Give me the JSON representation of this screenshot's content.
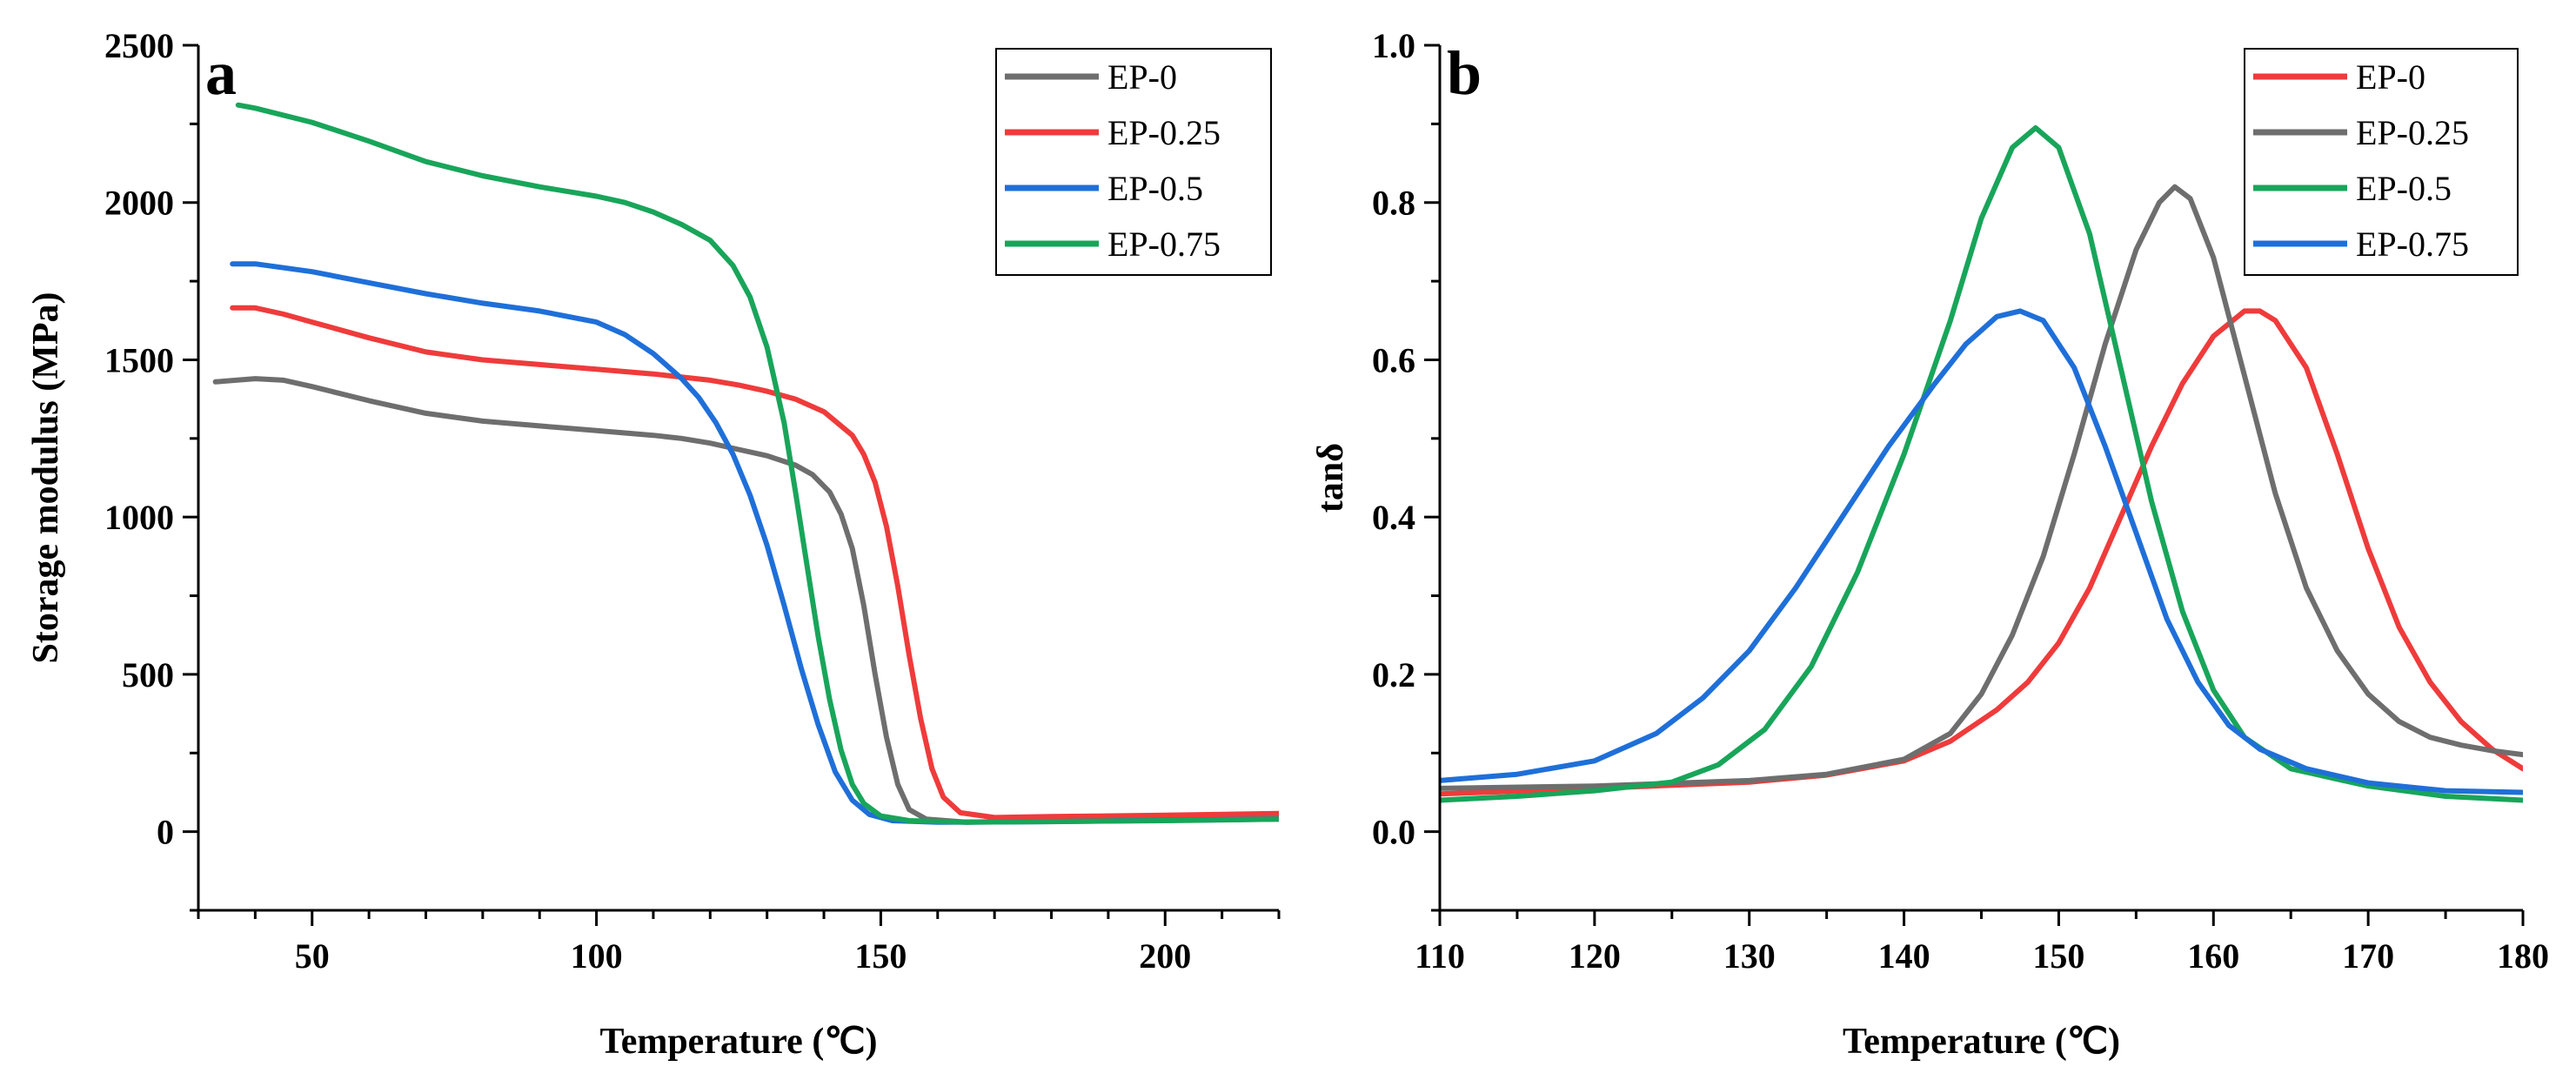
{
  "chart_data": [
    {
      "type": "line",
      "panel_label": "a",
      "xlabel": "Temperature (℃)",
      "ylabel": "Storage modulus (MPa)",
      "xlim": [
        30,
        220
      ],
      "ylim": [
        -250,
        2500
      ],
      "xticks": [
        50,
        100,
        150,
        200
      ],
      "yticks": [
        0,
        500,
        1000,
        1500,
        2000,
        2500
      ],
      "legend_position": "top-right",
      "series": [
        {
          "name": "EP-0",
          "color": "#6e6e6e",
          "points": [
            [
              33,
              1430
            ],
            [
              40,
              1440
            ],
            [
              45,
              1435
            ],
            [
              50,
              1415
            ],
            [
              60,
              1370
            ],
            [
              70,
              1330
            ],
            [
              80,
              1305
            ],
            [
              90,
              1290
            ],
            [
              100,
              1275
            ],
            [
              110,
              1260
            ],
            [
              115,
              1250
            ],
            [
              120,
              1235
            ],
            [
              125,
              1215
            ],
            [
              130,
              1195
            ],
            [
              135,
              1165
            ],
            [
              138,
              1135
            ],
            [
              141,
              1080
            ],
            [
              143,
              1010
            ],
            [
              145,
              900
            ],
            [
              147,
              720
            ],
            [
              149,
              500
            ],
            [
              151,
              300
            ],
            [
              153,
              150
            ],
            [
              155,
              70
            ],
            [
              158,
              40
            ],
            [
              165,
              30
            ],
            [
              180,
              35
            ],
            [
              200,
              38
            ],
            [
              220,
              42
            ]
          ]
        },
        {
          "name": "EP-0.25",
          "color": "#ef3b3b",
          "points": [
            [
              36,
              1665
            ],
            [
              40,
              1665
            ],
            [
              45,
              1645
            ],
            [
              50,
              1620
            ],
            [
              60,
              1570
            ],
            [
              70,
              1525
            ],
            [
              80,
              1500
            ],
            [
              90,
              1485
            ],
            [
              100,
              1470
            ],
            [
              110,
              1455
            ],
            [
              120,
              1435
            ],
            [
              125,
              1420
            ],
            [
              130,
              1400
            ],
            [
              135,
              1375
            ],
            [
              140,
              1335
            ],
            [
              145,
              1260
            ],
            [
              147,
              1200
            ],
            [
              149,
              1110
            ],
            [
              151,
              970
            ],
            [
              153,
              780
            ],
            [
              155,
              560
            ],
            [
              157,
              360
            ],
            [
              159,
              200
            ],
            [
              161,
              110
            ],
            [
              164,
              60
            ],
            [
              170,
              45
            ],
            [
              180,
              48
            ],
            [
              200,
              52
            ],
            [
              220,
              58
            ]
          ]
        },
        {
          "name": "EP-0.5",
          "color": "#1f6fd9",
          "points": [
            [
              36,
              1805
            ],
            [
              40,
              1805
            ],
            [
              50,
              1780
            ],
            [
              60,
              1745
            ],
            [
              70,
              1710
            ],
            [
              80,
              1680
            ],
            [
              90,
              1655
            ],
            [
              100,
              1620
            ],
            [
              105,
              1580
            ],
            [
              110,
              1520
            ],
            [
              115,
              1440
            ],
            [
              118,
              1380
            ],
            [
              121,
              1300
            ],
            [
              124,
              1200
            ],
            [
              127,
              1070
            ],
            [
              130,
              910
            ],
            [
              133,
              720
            ],
            [
              136,
              520
            ],
            [
              139,
              340
            ],
            [
              142,
              190
            ],
            [
              145,
              100
            ],
            [
              148,
              55
            ],
            [
              152,
              35
            ],
            [
              160,
              30
            ],
            [
              180,
              32
            ],
            [
              200,
              36
            ],
            [
              220,
              40
            ]
          ]
        },
        {
          "name": "EP-0.75",
          "color": "#18a55a",
          "points": [
            [
              37,
              2310
            ],
            [
              40,
              2300
            ],
            [
              50,
              2255
            ],
            [
              60,
              2195
            ],
            [
              70,
              2130
            ],
            [
              80,
              2085
            ],
            [
              90,
              2050
            ],
            [
              100,
              2020
            ],
            [
              105,
              2000
            ],
            [
              110,
              1970
            ],
            [
              115,
              1930
            ],
            [
              120,
              1880
            ],
            [
              124,
              1800
            ],
            [
              127,
              1700
            ],
            [
              130,
              1540
            ],
            [
              133,
              1300
            ],
            [
              135,
              1080
            ],
            [
              137,
              850
            ],
            [
              139,
              620
            ],
            [
              141,
              420
            ],
            [
              143,
              260
            ],
            [
              145,
              150
            ],
            [
              147,
              90
            ],
            [
              150,
              50
            ],
            [
              155,
              35
            ],
            [
              165,
              30
            ],
            [
              200,
              35
            ],
            [
              220,
              40
            ]
          ]
        }
      ]
    },
    {
      "type": "line",
      "panel_label": "b",
      "xlabel": "Temperature (℃)",
      "ylabel": "tanδ",
      "xlim": [
        110,
        180
      ],
      "ylim": [
        -0.1,
        1.0
      ],
      "xticks": [
        110,
        120,
        130,
        140,
        150,
        160,
        170,
        180
      ],
      "yticks": [
        0.0,
        0.2,
        0.4,
        0.6,
        0.8,
        1.0
      ],
      "legend_position": "top-right",
      "series": [
        {
          "name": "EP-0",
          "color": "#ef3b3b",
          "points": [
            [
              110,
              0.048
            ],
            [
              120,
              0.055
            ],
            [
              130,
              0.063
            ],
            [
              135,
              0.072
            ],
            [
              140,
              0.09
            ],
            [
              143,
              0.115
            ],
            [
              146,
              0.155
            ],
            [
              148,
              0.19
            ],
            [
              150,
              0.24
            ],
            [
              152,
              0.31
            ],
            [
              154,
              0.4
            ],
            [
              156,
              0.49
            ],
            [
              158,
              0.57
            ],
            [
              160,
              0.63
            ],
            [
              162,
              0.662
            ],
            [
              163,
              0.662
            ],
            [
              164,
              0.65
            ],
            [
              166,
              0.59
            ],
            [
              168,
              0.48
            ],
            [
              170,
              0.36
            ],
            [
              172,
              0.26
            ],
            [
              174,
              0.19
            ],
            [
              176,
              0.14
            ],
            [
              178,
              0.105
            ],
            [
              180,
              0.08
            ]
          ]
        },
        {
          "name": "EP-0.25",
          "color": "#6e6e6e",
          "points": [
            [
              110,
              0.055
            ],
            [
              120,
              0.058
            ],
            [
              130,
              0.065
            ],
            [
              135,
              0.073
            ],
            [
              140,
              0.092
            ],
            [
              143,
              0.125
            ],
            [
              145,
              0.175
            ],
            [
              147,
              0.25
            ],
            [
              149,
              0.35
            ],
            [
              151,
              0.48
            ],
            [
              153,
              0.62
            ],
            [
              155,
              0.74
            ],
            [
              156.5,
              0.8
            ],
            [
              157.5,
              0.82
            ],
            [
              158.5,
              0.805
            ],
            [
              160,
              0.73
            ],
            [
              162,
              0.58
            ],
            [
              164,
              0.43
            ],
            [
              166,
              0.31
            ],
            [
              168,
              0.23
            ],
            [
              170,
              0.175
            ],
            [
              172,
              0.14
            ],
            [
              174,
              0.12
            ],
            [
              176,
              0.11
            ],
            [
              178,
              0.103
            ],
            [
              180,
              0.098
            ]
          ]
        },
        {
          "name": "EP-0.5",
          "color": "#18a55a",
          "points": [
            [
              110,
              0.04
            ],
            [
              115,
              0.045
            ],
            [
              120,
              0.052
            ],
            [
              125,
              0.063
            ],
            [
              128,
              0.085
            ],
            [
              131,
              0.13
            ],
            [
              134,
              0.21
            ],
            [
              137,
              0.33
            ],
            [
              140,
              0.48
            ],
            [
              143,
              0.65
            ],
            [
              145,
              0.78
            ],
            [
              147,
              0.87
            ],
            [
              148.5,
              0.895
            ],
            [
              150,
              0.87
            ],
            [
              152,
              0.76
            ],
            [
              154,
              0.59
            ],
            [
              156,
              0.42
            ],
            [
              158,
              0.28
            ],
            [
              160,
              0.18
            ],
            [
              162,
              0.12
            ],
            [
              165,
              0.08
            ],
            [
              170,
              0.058
            ],
            [
              175,
              0.045
            ],
            [
              180,
              0.04
            ]
          ]
        },
        {
          "name": "EP-0.75",
          "color": "#1f6fd9",
          "points": [
            [
              110,
              0.065
            ],
            [
              115,
              0.073
            ],
            [
              120,
              0.09
            ],
            [
              124,
              0.125
            ],
            [
              127,
              0.17
            ],
            [
              130,
              0.23
            ],
            [
              133,
              0.31
            ],
            [
              136,
              0.4
            ],
            [
              139,
              0.49
            ],
            [
              142,
              0.57
            ],
            [
              144,
              0.62
            ],
            [
              146,
              0.655
            ],
            [
              147.5,
              0.662
            ],
            [
              149,
              0.65
            ],
            [
              151,
              0.59
            ],
            [
              153,
              0.49
            ],
            [
              155,
              0.38
            ],
            [
              157,
              0.27
            ],
            [
              159,
              0.19
            ],
            [
              161,
              0.135
            ],
            [
              163,
              0.105
            ],
            [
              166,
              0.08
            ],
            [
              170,
              0.062
            ],
            [
              175,
              0.052
            ],
            [
              180,
              0.05
            ]
          ]
        }
      ]
    }
  ]
}
